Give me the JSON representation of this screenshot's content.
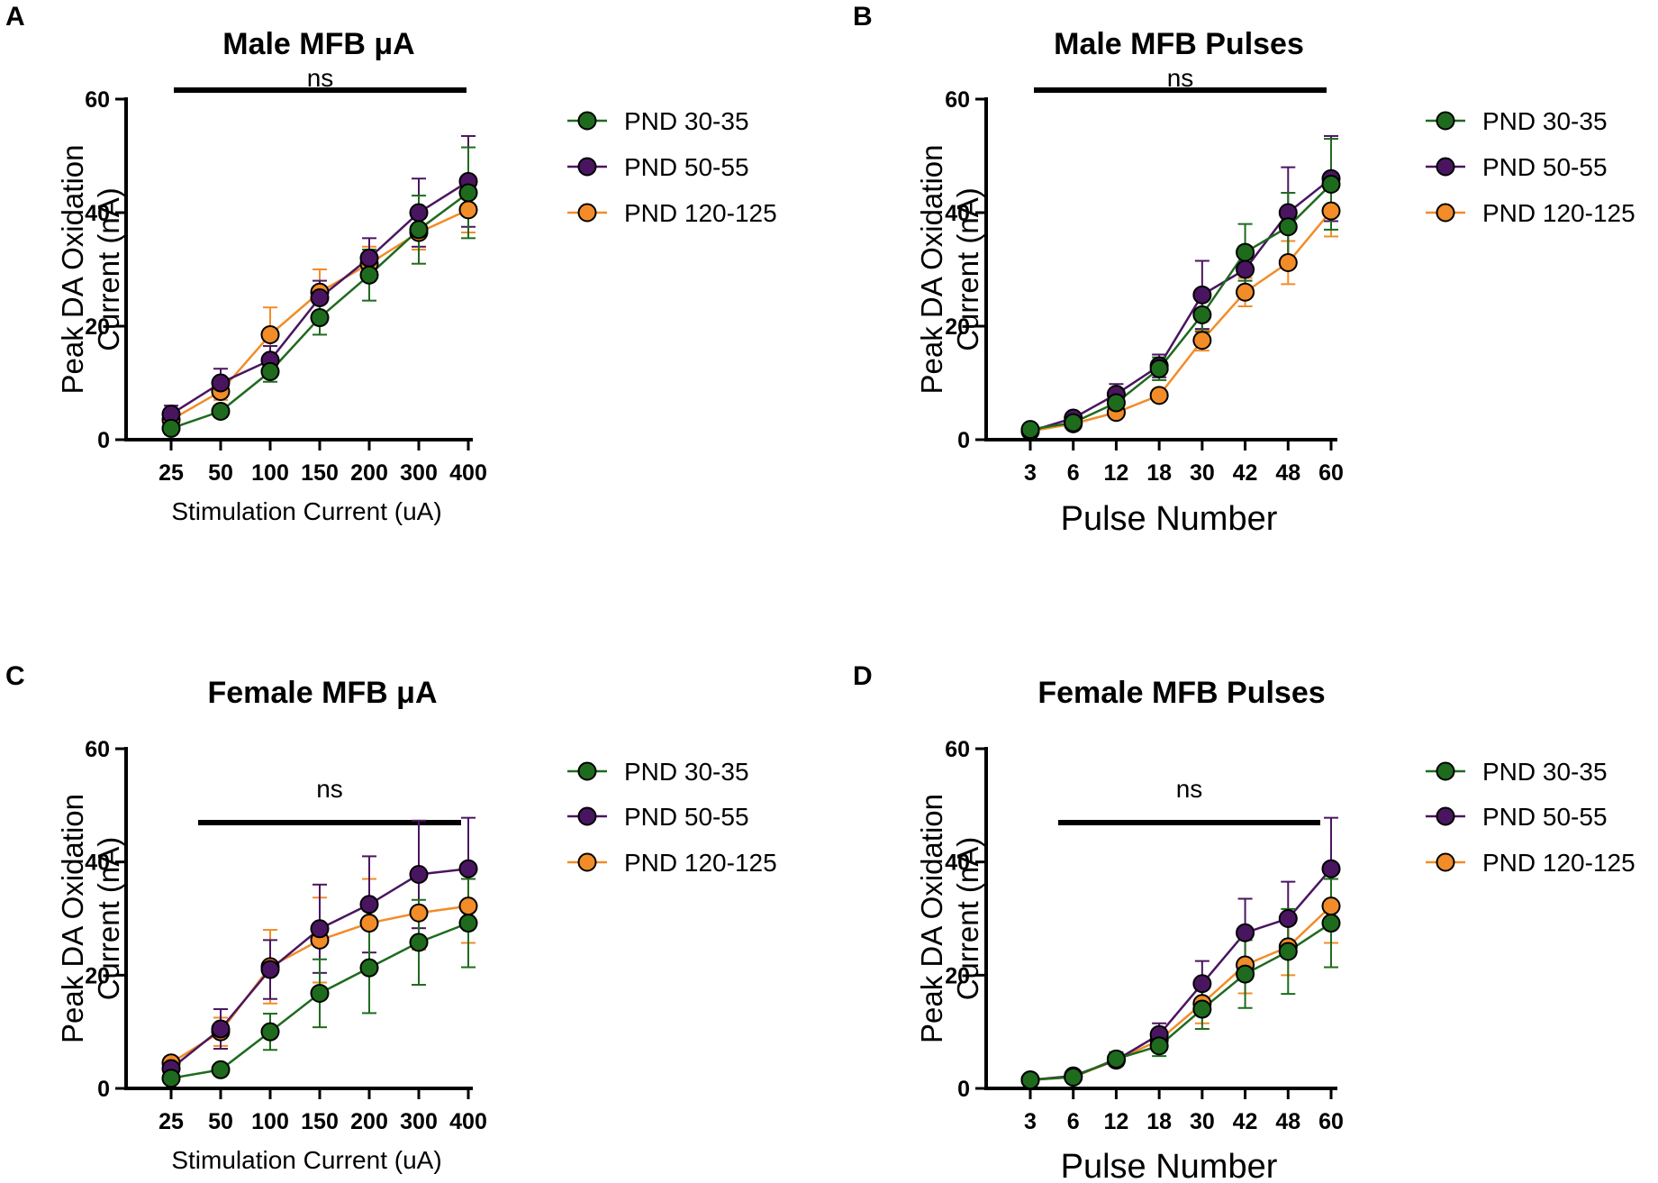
{
  "colors": {
    "green": "#1e6b1e",
    "purple": "#4a1560",
    "orange": "#f28c28",
    "axis": "#000000"
  },
  "chart_data": [
    {
      "panel": "A",
      "type": "line",
      "title": "Male MFB μA",
      "xlabel": "Stimulation Current (uA)",
      "ylabel": "Peak DA Oxidation Current (nA)",
      "ylabel_lines": [
        "Peak DA Oxidation",
        "Current (nA)"
      ],
      "categories": [
        "25",
        "50",
        "100",
        "150",
        "200",
        "300",
        "400"
      ],
      "ylim": [
        0,
        60
      ],
      "yticks": [
        "0",
        "20",
        "40",
        "60"
      ],
      "significance": "ns",
      "series": [
        {
          "name": "PND 30-35",
          "color": "green",
          "values": [
            2,
            5,
            12,
            21.5,
            29,
            37,
            43.5
          ],
          "errors": [
            1,
            1,
            1.8,
            3,
            4.5,
            6,
            8
          ]
        },
        {
          "name": "PND 50-55",
          "color": "purple",
          "values": [
            4.5,
            10,
            14,
            25,
            32,
            40,
            45.5
          ],
          "errors": [
            1.5,
            2.5,
            2.5,
            3,
            3.5,
            6,
            8
          ]
        },
        {
          "name": "PND 120-125",
          "color": "orange",
          "values": [
            3.5,
            8.5,
            18.5,
            26,
            31,
            36.5,
            40.5
          ],
          "errors": [
            1,
            1.5,
            4.8,
            4,
            3,
            3,
            4
          ]
        }
      ]
    },
    {
      "panel": "B",
      "type": "line",
      "title": "Male MFB Pulses",
      "xlabel": "Pulse Number",
      "ylabel": "Peak DA Oxidation Current (nA)",
      "ylabel_lines": [
        "Peak DA Oxidation",
        "Current (nA)"
      ],
      "categories": [
        "3",
        "6",
        "12",
        "18",
        "30",
        "42",
        "48",
        "60"
      ],
      "ylim": [
        0,
        60
      ],
      "yticks": [
        "0",
        "20",
        "40",
        "60"
      ],
      "significance": "ns",
      "series": [
        {
          "name": "PND 30-35",
          "color": "green",
          "values": [
            1.8,
            3,
            6.5,
            12.5,
            22,
            33,
            37.5,
            45
          ],
          "errors": [
            0.5,
            0.6,
            1.5,
            2,
            3,
            5,
            6,
            8
          ]
        },
        {
          "name": "PND 50-55",
          "color": "purple",
          "values": [
            1.5,
            3.8,
            8,
            13,
            25.5,
            30,
            40,
            46
          ],
          "errors": [
            0.4,
            0.8,
            1.8,
            2,
            6,
            4,
            8,
            7.5
          ]
        },
        {
          "name": "PND 120-125",
          "color": "orange",
          "values": [
            1.5,
            2.8,
            4.8,
            7.8,
            17.5,
            26,
            31.2,
            40.3
          ],
          "errors": [
            0.4,
            0.5,
            0.8,
            1,
            1.8,
            2.5,
            3.8,
            4.5
          ]
        }
      ]
    },
    {
      "panel": "C",
      "type": "line",
      "title": "Female MFB μA",
      "xlabel": "Stimulation Current (uA)",
      "ylabel": "Peak DA Oxidation Current (nA)",
      "ylabel_lines": [
        "Peak DA Oxidation",
        "Current (nA)"
      ],
      "categories": [
        "25",
        "50",
        "100",
        "150",
        "200",
        "300",
        "400"
      ],
      "ylim": [
        0,
        60
      ],
      "yticks": [
        "0",
        "20",
        "40",
        "60"
      ],
      "significance": "ns",
      "series": [
        {
          "name": "PND 30-35",
          "color": "green",
          "values": [
            1.8,
            3.3,
            10,
            16.8,
            21.3,
            25.8,
            29.2
          ],
          "errors": [
            0.6,
            0.7,
            3.2,
            6,
            8,
            7.5,
            7.8
          ]
        },
        {
          "name": "PND 50-55",
          "color": "purple",
          "values": [
            3.5,
            10.5,
            21,
            28.2,
            32.5,
            37.8,
            38.8
          ],
          "errors": [
            1,
            3.5,
            5.2,
            7.8,
            8.5,
            9.5,
            9
          ]
        },
        {
          "name": "PND 120-125",
          "color": "orange",
          "values": [
            4.5,
            10,
            21.5,
            26.2,
            29.2,
            31,
            32.2
          ],
          "errors": [
            1,
            2.5,
            6.5,
            7.5,
            7.8,
            6.5,
            6.5
          ]
        }
      ]
    },
    {
      "panel": "D",
      "type": "line",
      "title": "Female MFB Pulses",
      "xlabel": "Pulse Number",
      "ylabel": "Peak DA Oxidation Current (nA)",
      "ylabel_lines": [
        "Peak DA Oxidation",
        "Current (nA)"
      ],
      "categories": [
        "3",
        "6",
        "12",
        "18",
        "30",
        "42",
        "48",
        "60"
      ],
      "ylim": [
        0,
        60
      ],
      "yticks": [
        "0",
        "20",
        "40",
        "60"
      ],
      "significance": "ns",
      "series": [
        {
          "name": "PND 30-35",
          "color": "green",
          "values": [
            1.5,
            2,
            5.2,
            7.5,
            14,
            20.2,
            24.2,
            29.2
          ],
          "errors": [
            0.4,
            0.5,
            1.2,
            1.8,
            3.5,
            6,
            7.5,
            7.8
          ]
        },
        {
          "name": "PND 50-55",
          "color": "purple",
          "values": [
            1.5,
            2.2,
            5,
            9.5,
            18.5,
            27.5,
            30,
            38.8
          ],
          "errors": [
            0.4,
            0.5,
            1,
            2,
            4,
            6,
            6.5,
            9
          ]
        },
        {
          "name": "PND 120-125",
          "color": "orange",
          "values": [
            1.5,
            2,
            5,
            8.5,
            15,
            21.8,
            25,
            32.2
          ],
          "errors": [
            0.4,
            0.5,
            1,
            1.8,
            3.5,
            5,
            5,
            6.5
          ]
        }
      ]
    }
  ]
}
